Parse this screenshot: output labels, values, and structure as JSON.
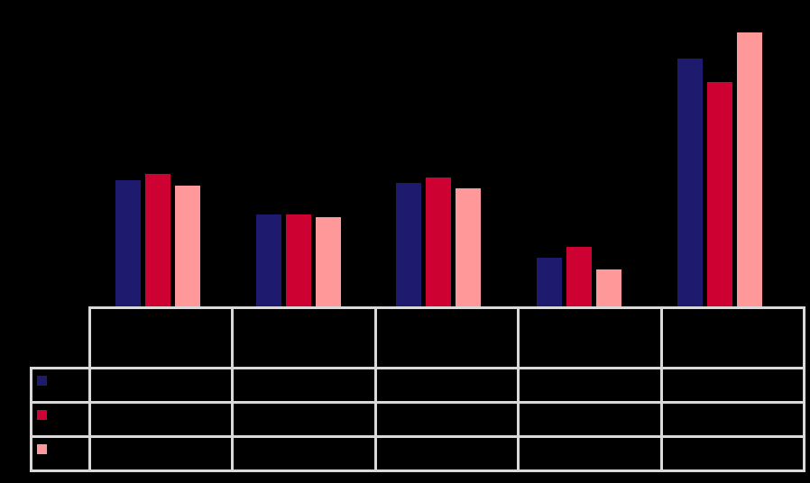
{
  "background_color": "#000000",
  "chart_data": {
    "type": "bar",
    "title": "",
    "xlabel": "",
    "ylabel": "",
    "categories": [
      "",
      "",
      "",
      "",
      ""
    ],
    "series": [
      {
        "name": "",
        "color": "#1E1A6E",
        "values": [
          44,
          32,
          43,
          17,
          86
        ]
      },
      {
        "name": "",
        "color": "#CE0232",
        "values": [
          46,
          32,
          45,
          21,
          78
        ]
      },
      {
        "name": "",
        "color": "#FF9898",
        "values": [
          42,
          31,
          41,
          13,
          95
        ]
      }
    ],
    "ylim": [
      0,
      100
    ],
    "gridlines": false,
    "axis_labels_visible": false,
    "legend_position": "data-table-left-column",
    "data_table": {
      "shown": true,
      "border_color": "#D9D9D9",
      "header_cells": [
        "",
        "",
        "",
        "",
        ""
      ],
      "rows": [
        {
          "swatch_color": "#1E1A6E",
          "cells": [
            "",
            "",
            "",
            "",
            ""
          ]
        },
        {
          "swatch_color": "#CE0232",
          "cells": [
            "",
            "",
            "",
            "",
            ""
          ]
        },
        {
          "swatch_color": "#FF9898",
          "cells": [
            "",
            "",
            "",
            "",
            ""
          ]
        }
      ]
    }
  }
}
